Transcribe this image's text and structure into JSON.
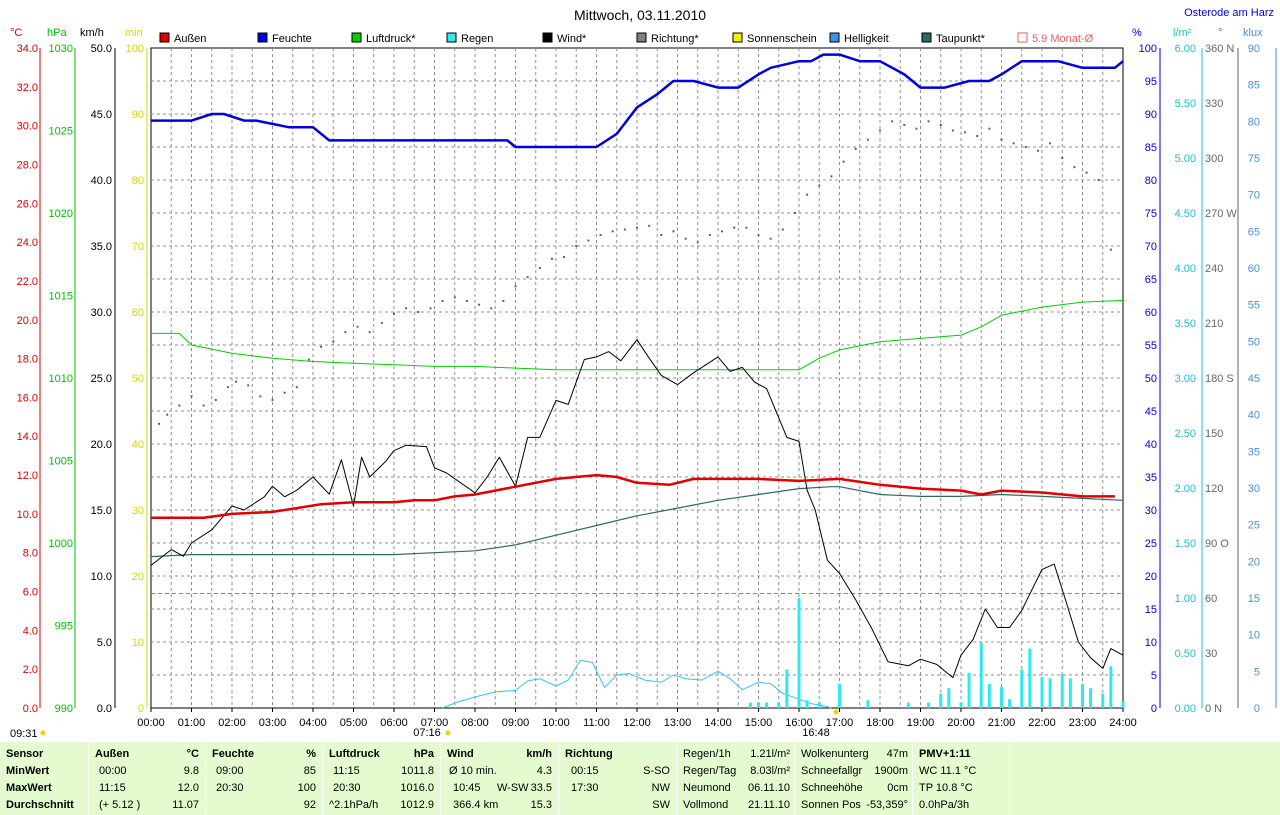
{
  "title": "Mittwoch, 03.11.2010",
  "location": "Osterode am Harz",
  "legend": [
    {
      "label": "Außen",
      "color": "#e00000"
    },
    {
      "label": "Feuchte",
      "color": "#0000e0"
    },
    {
      "label": "Luftdruck*",
      "color": "#00d000"
    },
    {
      "label": "Regen",
      "color": "#30e8f0"
    },
    {
      "label": "Wind*",
      "color": "#000000"
    },
    {
      "label": "Richtung*",
      "color": "#808080"
    },
    {
      "label": "Sonnenschein",
      "color": "#f0f000"
    },
    {
      "label": "Helligkeit",
      "color": "#4090e8"
    },
    {
      "label": "Taupunkt*",
      "color": "#306868"
    },
    {
      "label": "5.9 Monat-Ø",
      "color": "#e06060"
    }
  ],
  "axis_units": {
    "temp": "°C",
    "press": "hPa",
    "wind": "km/h",
    "sun": "min",
    "hum": "%",
    "rain": "l/m²",
    "dir": "°",
    "lux": "klux"
  },
  "axes": {
    "temp": [
      "0.0",
      "2.0",
      "4.0",
      "6.0",
      "8.0",
      "10.0",
      "12.0",
      "14.0",
      "16.0",
      "18.0",
      "20.0",
      "22.0",
      "24.0",
      "26.0",
      "28.0",
      "30.0",
      "32.0",
      "34.0"
    ],
    "press": [
      "990",
      "995",
      "1000",
      "1005",
      "1010",
      "1015",
      "1020",
      "1025",
      "1030"
    ],
    "wind": [
      "0.0",
      "5.0",
      "10.0",
      "15.0",
      "20.0",
      "25.0",
      "30.0",
      "35.0",
      "40.0",
      "45.0",
      "50.0"
    ],
    "sun": [
      "0",
      "10",
      "20",
      "30",
      "40",
      "50",
      "60",
      "70",
      "80",
      "90",
      "100"
    ],
    "hum": [
      "0",
      "5",
      "10",
      "15",
      "20",
      "25",
      "30",
      "35",
      "40",
      "45",
      "50",
      "55",
      "60",
      "65",
      "70",
      "75",
      "80",
      "85",
      "90",
      "95",
      "100"
    ],
    "rain": [
      "0.00",
      "0.50",
      "1.00",
      "1.50",
      "2.00",
      "2.50",
      "3.00",
      "3.50",
      "4.00",
      "4.50",
      "5.00",
      "5.50",
      "6.00"
    ],
    "dir": [
      "0 N",
      "30",
      "60",
      "90 O",
      "120",
      "150",
      "180 S",
      "210",
      "240",
      "270 W",
      "300",
      "330",
      "360 N"
    ],
    "lux": [
      "0",
      "5",
      "10",
      "15",
      "20",
      "25",
      "30",
      "35",
      "40",
      "45",
      "50",
      "55",
      "60",
      "65",
      "70",
      "75",
      "80",
      "85",
      "90"
    ],
    "time": [
      "00:00",
      "01:00",
      "02:00",
      "03:00",
      "04:00",
      "05:00",
      "06:00",
      "07:00",
      "08:00",
      "09:00",
      "10:00",
      "11:00",
      "12:00",
      "13:00",
      "14:00",
      "15:00",
      "16:00",
      "17:00",
      "18:00",
      "19:00",
      "20:00",
      "21:00",
      "22:00",
      "23:00",
      "24:00"
    ]
  },
  "sun_times": {
    "max_time": "09:31",
    "sunrise": "07:16",
    "sunset": "16:48"
  },
  "chart_data": {
    "type": "line",
    "x_unit": "hour",
    "xlim": [
      0,
      24
    ],
    "month_avg_temp": 5.9,
    "series": [
      {
        "name": "Außen",
        "axis": "temp",
        "x": [
          0,
          1.3,
          2,
          3,
          3.6,
          4.2,
          5,
          6,
          6.5,
          7,
          7.5,
          8,
          9,
          10,
          11,
          11.5,
          12,
          12.8,
          13.4,
          14,
          15,
          16,
          17,
          18,
          19,
          20,
          20.5,
          21,
          22,
          23,
          23.8
        ],
        "y": [
          9.8,
          9.8,
          10.0,
          10.1,
          10.3,
          10.5,
          10.6,
          10.6,
          10.7,
          10.7,
          10.9,
          11.0,
          11.4,
          11.8,
          12.0,
          11.9,
          11.6,
          11.5,
          11.8,
          11.8,
          11.8,
          11.7,
          11.8,
          11.5,
          11.3,
          11.2,
          11.0,
          11.2,
          11.1,
          10.9,
          10.9
        ]
      },
      {
        "name": "Feuchte",
        "axis": "hum",
        "x": [
          0,
          0.7,
          1,
          1.5,
          1.8,
          2.3,
          2.6,
          3.4,
          4,
          4.4,
          5,
          6,
          7,
          8,
          8.8,
          9,
          10,
          11,
          11.5,
          12,
          12.5,
          12.9,
          13.4,
          14,
          14.5,
          15,
          15.3,
          16,
          16.3,
          16.6,
          17,
          17.5,
          18,
          18.6,
          19,
          19.6,
          20.2,
          20.7,
          21,
          21.5,
          22,
          22.4,
          23,
          23.8,
          24
        ],
        "y": [
          89,
          89,
          89,
          90,
          90,
          89,
          89,
          88,
          88,
          86,
          86,
          86,
          86,
          86,
          86,
          85,
          85,
          85,
          87,
          91,
          93,
          95,
          95,
          94,
          94,
          96,
          97,
          98,
          98,
          99,
          99,
          98,
          98,
          96,
          94,
          94,
          95,
          95,
          96,
          98,
          98,
          98,
          97,
          97,
          98
        ]
      },
      {
        "name": "Luftdruck*",
        "axis": "press",
        "x": [
          0,
          0.7,
          1,
          2,
          3,
          4,
          5,
          6,
          7,
          8,
          9,
          10,
          11,
          12,
          13,
          14,
          15,
          16,
          16.5,
          17,
          18,
          19,
          20,
          20.5,
          21,
          22,
          23,
          24
        ],
        "y": [
          1012.7,
          1012.7,
          1012.0,
          1011.5,
          1011.2,
          1011.0,
          1010.9,
          1010.8,
          1010.7,
          1010.7,
          1010.6,
          1010.5,
          1010.5,
          1010.5,
          1010.5,
          1010.5,
          1010.5,
          1010.5,
          1011.2,
          1011.7,
          1012.2,
          1012.4,
          1012.6,
          1013.1,
          1013.8,
          1014.3,
          1014.6,
          1014.7
        ]
      },
      {
        "name": "Wind*",
        "axis": "wind",
        "x": [
          0,
          0.5,
          0.8,
          1,
          1.5,
          2,
          2.3,
          2.8,
          3,
          3.3,
          3.6,
          4,
          4.4,
          4.7,
          5,
          5.2,
          5.4,
          5.8,
          6,
          6.3,
          6.8,
          7,
          7.3,
          8,
          8.3,
          8.6,
          9,
          9.3,
          9.6,
          10,
          10.3,
          10.7,
          11,
          11.3,
          11.6,
          12,
          12.3,
          12.6,
          13,
          13.4,
          13.8,
          14,
          14.3,
          14.6,
          14.9,
          15.2,
          15.7,
          16,
          16.2,
          16.4,
          16.7,
          17,
          17.4,
          17.8,
          18.2,
          18.7,
          19,
          19.4,
          19.8,
          20,
          20.3,
          20.6,
          20.9,
          21.2,
          21.5,
          22,
          22.3,
          22.6,
          22.9,
          23.2,
          23.5,
          23.7,
          24
        ],
        "y": [
          10.8,
          12.0,
          11.5,
          12.5,
          13.5,
          15.3,
          15.0,
          16.0,
          16.8,
          16.0,
          16.5,
          17.5,
          16.2,
          18.8,
          15.3,
          19.0,
          17.5,
          18.7,
          19.5,
          19.9,
          19.8,
          18.2,
          17.8,
          16.3,
          17.5,
          19.0,
          16.8,
          20.5,
          20.5,
          23.3,
          23.0,
          26.4,
          26.6,
          27.0,
          26.3,
          27.9,
          26.5,
          25.2,
          24.5,
          25.4,
          26.2,
          26.6,
          25.5,
          25.8,
          24.7,
          24.2,
          20.5,
          20.2,
          16.5,
          15.0,
          11.2,
          10.2,
          8.2,
          6.0,
          3.5,
          3.2,
          3.7,
          3.3,
          2.3,
          4.0,
          5.2,
          7.5,
          6.1,
          6.1,
          7.4,
          10.5,
          10.9,
          8.0,
          5.0,
          3.8,
          3.0,
          4.5,
          4.0
        ]
      },
      {
        "name": "Taupunkt*",
        "axis": "temp",
        "x": [
          0,
          1,
          2,
          3,
          4,
          5,
          6,
          7,
          8,
          9,
          10,
          11,
          12,
          13,
          14,
          15,
          16,
          16.8,
          17,
          18,
          19,
          20,
          21,
          22,
          23,
          24
        ],
        "y": [
          7.8,
          7.9,
          7.9,
          7.9,
          7.9,
          7.9,
          7.9,
          8.0,
          8.1,
          8.4,
          8.9,
          9.4,
          9.9,
          10.3,
          10.7,
          11.0,
          11.3,
          11.4,
          11.4,
          11.0,
          10.9,
          10.9,
          11.0,
          10.9,
          10.8,
          10.7
        ]
      },
      {
        "name": "Helligkeit",
        "axis": "lux",
        "x": [
          7.2,
          7.5,
          8,
          8.5,
          9,
          9.3,
          9.6,
          10,
          10.3,
          10.6,
          10.9,
          11.2,
          11.5,
          11.8,
          12.2,
          12.6,
          12.9,
          13.2,
          13.6,
          14,
          14.3,
          14.6,
          15,
          15.3,
          15.6,
          16,
          16.3,
          16.6,
          16.8
        ],
        "y": [
          0,
          0.7,
          1.5,
          2.2,
          2.4,
          3.7,
          4.0,
          3.0,
          3.8,
          6.5,
          6.2,
          2.8,
          4.5,
          4.7,
          3.8,
          3.5,
          4.5,
          4.0,
          3.8,
          5.0,
          4.0,
          2.5,
          3.5,
          3.3,
          2.0,
          1.2,
          0.6,
          0.3,
          0
        ]
      },
      {
        "name": "Regen",
        "axis": "rain",
        "type": "bar",
        "x": [
          14.8,
          15,
          15.2,
          15.5,
          15.7,
          16,
          16.2,
          16.5,
          17,
          17.7,
          18.7,
          19.2,
          19.5,
          19.7,
          20,
          20.2,
          20.5,
          20.7,
          21,
          21.2,
          21.5,
          21.7,
          22,
          22.2,
          22.5,
          22.7,
          23,
          23.2,
          23.5,
          23.7,
          24
        ],
        "y": [
          0.05,
          0.05,
          0.05,
          0.05,
          0.35,
          1.0,
          0.07,
          0.05,
          0.22,
          0.07,
          0.05,
          0.05,
          0.13,
          0.18,
          0.05,
          0.32,
          0.59,
          0.22,
          0.19,
          0.08,
          0.35,
          0.54,
          0.28,
          0.27,
          0.31,
          0.27,
          0.22,
          0.18,
          0.13,
          0.38,
          0.06
        ]
      },
      {
        "name": "Richtung*",
        "axis": "dir",
        "type": "scatter",
        "x": [
          0.2,
          0.4,
          0.7,
          1,
          1.3,
          1.6,
          1.9,
          2.1,
          2.4,
          2.7,
          3,
          3.3,
          3.6,
          3.9,
          4.2,
          4.5,
          4.8,
          5.1,
          5.4,
          5.7,
          6,
          6.3,
          6.6,
          6.9,
          7.2,
          7.5,
          7.8,
          8.1,
          8.4,
          8.7,
          9,
          9.3,
          9.6,
          9.9,
          10.2,
          10.5,
          10.8,
          11.1,
          11.4,
          11.7,
          12,
          12.3,
          12.6,
          12.9,
          13.2,
          13.5,
          13.8,
          14.1,
          14.4,
          14.7,
          15,
          15.3,
          15.6,
          15.9,
          16.2,
          16.5,
          16.8,
          17.1,
          17.4,
          17.7,
          18,
          18.3,
          18.6,
          18.9,
          19.2,
          19.5,
          19.8,
          20.1,
          20.4,
          20.7,
          21,
          21.3,
          21.6,
          21.9,
          22.2,
          22.5,
          22.8,
          23.1,
          23.4,
          23.7
        ],
        "y": [
          155,
          160,
          165,
          170,
          165,
          168,
          175,
          178,
          176,
          170,
          168,
          172,
          175,
          190,
          197,
          200,
          205,
          208,
          205,
          210,
          215,
          218,
          216,
          218,
          222,
          224,
          222,
          220,
          218,
          222,
          230,
          235,
          240,
          245,
          246,
          252,
          255,
          258,
          260,
          261,
          262,
          263,
          258,
          260,
          256,
          254,
          258,
          260,
          262,
          262,
          258,
          256,
          261,
          270,
          280,
          285,
          290,
          298,
          305,
          310,
          315,
          320,
          318,
          316,
          320,
          318,
          315,
          314,
          312,
          316,
          310,
          308,
          306,
          304,
          308,
          300,
          295,
          292,
          288,
          250
        ]
      }
    ]
  },
  "footer": {
    "sensor": {
      "title": "Sensor",
      "rows": [
        "MinWert",
        "MaxWert",
        "Durchschnitt"
      ]
    },
    "aussen": {
      "title": "Außen",
      "unit": "°C",
      "rows": [
        [
          "00:00",
          "9.8"
        ],
        [
          "11:15",
          "12.0"
        ],
        [
          "(+ 5.12 )",
          "11.07"
        ]
      ]
    },
    "feuchte": {
      "title": "Feuchte",
      "unit": "%",
      "rows": [
        [
          "09:00",
          "85"
        ],
        [
          "20:30",
          "100"
        ],
        [
          "",
          "92"
        ]
      ]
    },
    "luftdruck": {
      "title": "Luftdruck",
      "unit": "hPa",
      "rows": [
        [
          "11:15",
          "1011.8"
        ],
        [
          "20:30",
          "1016.0"
        ],
        [
          "^2.1hPa/h",
          "1012.9"
        ]
      ]
    },
    "wind": {
      "title": "Wind",
      "unit": "km/h",
      "rows": [
        [
          "Ø 10 min.",
          "",
          "4.3"
        ],
        [
          "10:45",
          "W-SW",
          "33.5"
        ],
        [
          "366.4 km",
          "",
          "15.3"
        ]
      ]
    },
    "richtung": {
      "title": "Richtung",
      "rows": [
        [
          "00:15",
          "S-SO"
        ],
        [
          "17:30",
          "NW"
        ],
        [
          "",
          "SW"
        ]
      ]
    },
    "regen": {
      "rows": [
        [
          "Regen/1h",
          "1.21l/m²"
        ],
        [
          "Regen/Tag",
          "8.03l/m²"
        ],
        [
          "Neumond",
          "06.11.10"
        ],
        [
          "Vollmond",
          "21.11.10"
        ]
      ]
    },
    "wolken": {
      "rows": [
        [
          "Wolkenunterg",
          "47m"
        ],
        [
          "Schneefallgr",
          "1900m"
        ],
        [
          "Schneehöhe",
          "0cm"
        ],
        [
          "Sonnen Pos",
          "-53,359°"
        ]
      ]
    },
    "pmv": {
      "rows": [
        "PMV+1:11",
        "WC 11.1 °C",
        "TP 10.8 °C",
        "0.0hPa/3h"
      ]
    }
  }
}
